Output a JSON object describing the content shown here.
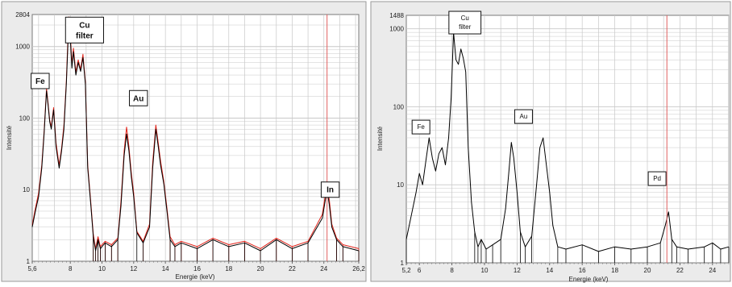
{
  "colors": {
    "panel_bg": "#ebebeb",
    "plot_bg": "#ffffff",
    "grid": "#c8c8c8",
    "black_trace": "#000000",
    "red_trace": "#e2231a",
    "marker_line": "#e06060"
  },
  "chart_data": [
    {
      "type": "line",
      "title": "",
      "xlabel": "Energie (keV)",
      "ylabel": "Intensité",
      "y_scale": "log",
      "xlim": [
        5.6,
        26.2
      ],
      "ylim": [
        1,
        2804
      ],
      "grid": true,
      "x_tick_labels": [
        "5,6",
        "8",
        "10",
        "12",
        "14",
        "16",
        "18",
        "20",
        "22",
        "24",
        "26,2"
      ],
      "x_tick_values": [
        5.6,
        8,
        10,
        12,
        14,
        16,
        18,
        20,
        22,
        24,
        26.2
      ],
      "y_tick_labels": [
        "1",
        "10",
        "100",
        "1000",
        "2804"
      ],
      "y_tick_values": [
        1,
        10,
        100,
        1000,
        2804
      ],
      "marker_line_x": 24.2,
      "annotations": [
        {
          "text": "Fe",
          "x": 6.1,
          "y": 330,
          "color": "#111111"
        },
        {
          "text": "Cu filter",
          "x": 8.9,
          "y": 1700,
          "color": "#111111"
        },
        {
          "text": "Au",
          "x": 12.3,
          "y": 190,
          "color": "#111111"
        },
        {
          "text": "In",
          "x": 24.4,
          "y": 10,
          "color": "#e2231a"
        }
      ],
      "series": [
        {
          "color": "#000000",
          "x": [
            5.6,
            5.8,
            6.0,
            6.2,
            6.35,
            6.5,
            6.6,
            6.7,
            6.8,
            6.95,
            7.1,
            7.3,
            7.45,
            7.6,
            7.75,
            7.9,
            8.0,
            8.1,
            8.2,
            8.35,
            8.5,
            8.65,
            8.8,
            8.95,
            9.1,
            9.3,
            9.45,
            9.6,
            9.75,
            9.9,
            10.2,
            10.6,
            11.0,
            11.2,
            11.4,
            11.55,
            11.7,
            11.85,
            12.0,
            12.2,
            12.6,
            13.0,
            13.2,
            13.4,
            13.55,
            13.7,
            13.9,
            14.1,
            14.3,
            14.6,
            15.0,
            16.0,
            17.0,
            18.0,
            19.0,
            20.0,
            21.0,
            22.0,
            23.0,
            23.9,
            24.2,
            24.35,
            24.5,
            24.8,
            25.2,
            26.2
          ],
          "y": [
            3,
            5,
            8,
            20,
            60,
            240,
            150,
            90,
            70,
            130,
            40,
            20,
            35,
            70,
            300,
            2000,
            1300,
            500,
            850,
            400,
            600,
            450,
            700,
            300,
            20,
            6,
            2.2,
            1.4,
            2,
            1.5,
            1.8,
            1.6,
            2,
            6,
            30,
            60,
            35,
            15,
            8,
            2.5,
            1.8,
            3,
            20,
            70,
            40,
            22,
            12,
            5,
            2,
            1.6,
            1.8,
            1.5,
            2,
            1.6,
            1.8,
            1.4,
            2,
            1.5,
            1.8,
            4,
            10,
            6,
            3,
            2,
            1.6,
            1.4
          ]
        },
        {
          "color": "#e2231a",
          "x": [
            5.6,
            5.8,
            6.0,
            6.2,
            6.35,
            6.5,
            6.6,
            6.7,
            6.8,
            6.95,
            7.1,
            7.3,
            7.45,
            7.6,
            7.75,
            7.9,
            8.0,
            8.1,
            8.2,
            8.35,
            8.5,
            8.65,
            8.8,
            8.95,
            9.1,
            9.3,
            9.45,
            9.6,
            9.75,
            9.9,
            10.2,
            10.6,
            11.0,
            11.2,
            11.4,
            11.55,
            11.7,
            11.85,
            12.0,
            12.2,
            12.6,
            13.0,
            13.2,
            13.4,
            13.55,
            13.7,
            13.9,
            14.1,
            14.3,
            14.6,
            15.0,
            16.0,
            17.0,
            18.0,
            19.0,
            20.0,
            21.0,
            22.0,
            23.0,
            23.9,
            24.2,
            24.35,
            24.5,
            24.8,
            25.2,
            26.2
          ],
          "y": [
            3.2,
            5.5,
            9,
            22,
            65,
            260,
            160,
            95,
            75,
            140,
            45,
            22,
            38,
            80,
            330,
            2600,
            1500,
            560,
            950,
            440,
            650,
            480,
            780,
            320,
            22,
            6.5,
            2.4,
            1.5,
            2.2,
            1.6,
            1.9,
            1.7,
            2.1,
            7,
            35,
            75,
            40,
            17,
            9,
            2.6,
            1.9,
            3.3,
            24,
            80,
            45,
            25,
            13,
            5.5,
            2.2,
            1.7,
            1.9,
            1.6,
            2.1,
            1.7,
            1.9,
            1.5,
            2.1,
            1.6,
            1.9,
            4.5,
            12,
            7,
            3.3,
            2.1,
            1.7,
            1.5
          ]
        }
      ]
    },
    {
      "type": "line",
      "title": "",
      "xlabel": "Energie (keV)",
      "ylabel": "Intensité",
      "y_scale": "log",
      "xlim": [
        5.2,
        25
      ],
      "ylim": [
        1,
        1488
      ],
      "grid": true,
      "x_tick_labels": [
        "5,2",
        "6",
        "8",
        "10",
        "12",
        "14",
        "16",
        "18",
        "20",
        "22",
        "24"
      ],
      "x_tick_values": [
        5.2,
        6,
        8,
        10,
        12,
        14,
        16,
        18,
        20,
        22,
        24
      ],
      "y_tick_labels": [
        "1",
        "10",
        "100",
        "1000",
        "1488"
      ],
      "y_tick_values": [
        1,
        10,
        100,
        1000,
        1488
      ],
      "marker_line_x": 21.2,
      "annotations": [
        {
          "text": "Fe",
          "x": 6.1,
          "y": 55
        },
        {
          "text": "Cu filter",
          "x": 8.8,
          "y": 1200
        },
        {
          "text": "Au",
          "x": 12.4,
          "y": 75
        },
        {
          "text": "Pd",
          "x": 20.6,
          "y": 12
        }
      ],
      "series": [
        {
          "color": "#000000",
          "x": [
            5.2,
            5.5,
            5.8,
            6.0,
            6.2,
            6.4,
            6.6,
            6.8,
            7.0,
            7.2,
            7.4,
            7.6,
            7.8,
            7.95,
            8.1,
            8.25,
            8.4,
            8.55,
            8.7,
            8.85,
            9.0,
            9.2,
            9.4,
            9.6,
            9.8,
            10.1,
            10.5,
            11.0,
            11.3,
            11.5,
            11.65,
            11.8,
            12.0,
            12.2,
            12.5,
            12.9,
            13.2,
            13.4,
            13.6,
            13.8,
            14.0,
            14.2,
            14.5,
            15.0,
            16.0,
            17.0,
            18.0,
            19.0,
            20.0,
            20.8,
            21.1,
            21.3,
            21.5,
            21.8,
            22.5,
            23.5,
            24.0,
            24.5,
            25.0
          ],
          "y": [
            2,
            4,
            8,
            14,
            10,
            20,
            40,
            22,
            15,
            25,
            30,
            18,
            40,
            130,
            900,
            400,
            350,
            550,
            420,
            280,
            30,
            6,
            2.5,
            1.6,
            2,
            1.5,
            1.7,
            2,
            5,
            15,
            35,
            22,
            8,
            2.5,
            1.6,
            2.2,
            10,
            30,
            40,
            18,
            8,
            3,
            1.6,
            1.5,
            1.7,
            1.4,
            1.6,
            1.5,
            1.6,
            1.8,
            3,
            4.5,
            2,
            1.6,
            1.5,
            1.6,
            1.8,
            1.5,
            1.6
          ]
        }
      ]
    }
  ]
}
